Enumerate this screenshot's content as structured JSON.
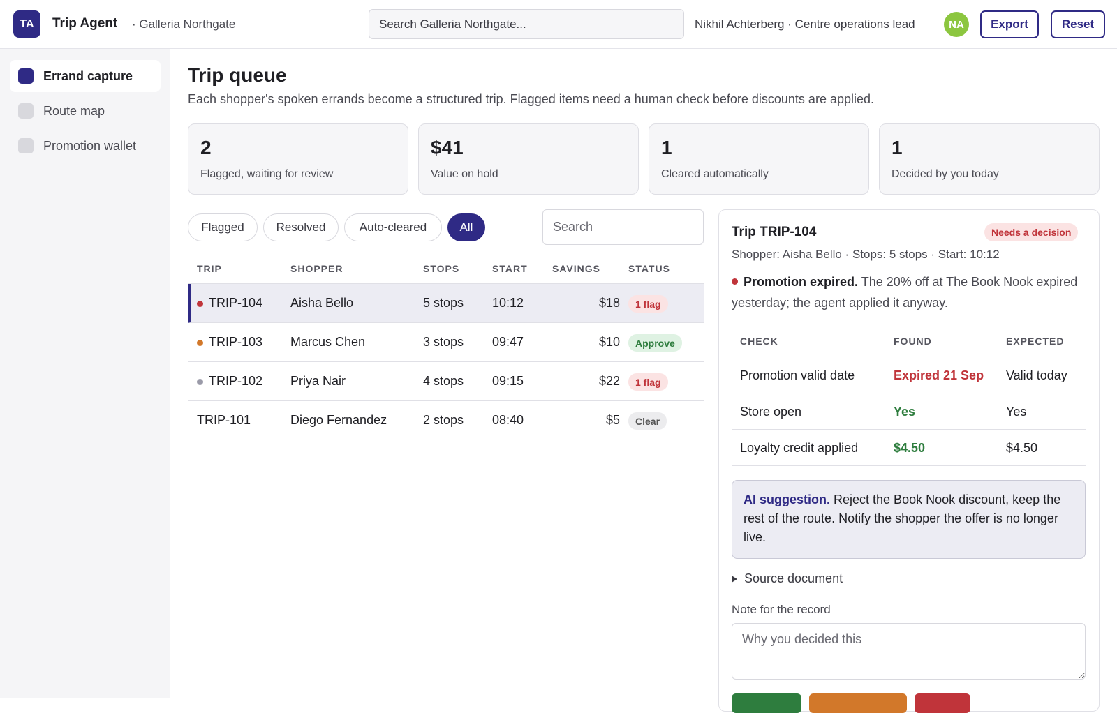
{
  "header": {
    "logo": "TA",
    "app_title": "Trip Agent",
    "site": "· Galleria Northgate",
    "search_placeholder": "Search Galleria Northgate...",
    "user": "Nikhil Achterberg · Centre operations lead",
    "avatar": "NA",
    "export_label": "Export",
    "reset_label": "Reset"
  },
  "sidebar": {
    "items": [
      {
        "label": "Errand capture",
        "active": true
      },
      {
        "label": "Route map",
        "active": false
      },
      {
        "label": "Promotion wallet",
        "active": false
      }
    ]
  },
  "main": {
    "title": "Trip queue",
    "subtitle": "Each shopper's spoken errands become a structured trip. Flagged items need a human check before discounts are applied.",
    "stats": [
      {
        "value": "2",
        "label": "Flagged, waiting for review"
      },
      {
        "value": "$41",
        "label": "Value on hold"
      },
      {
        "value": "1",
        "label": "Cleared automatically"
      },
      {
        "value": "1",
        "label": "Decided by you today"
      }
    ],
    "filters": [
      "Flagged",
      "Resolved",
      "Auto-cleared",
      "All"
    ],
    "active_filter": "All",
    "search_placeholder": "Search",
    "columns": [
      "TRIP",
      "SHOPPER",
      "STOPS",
      "START",
      "SAVINGS",
      "STATUS"
    ],
    "rows": [
      {
        "trip": "TRIP-104",
        "shopper": "Aisha Bello",
        "stops": "5 stops",
        "start": "10:12",
        "savings": "$18",
        "status": "1 flag",
        "status_kind": "flag",
        "dot": "#c0343a",
        "selected": true
      },
      {
        "trip": "TRIP-103",
        "shopper": "Marcus Chen",
        "stops": "3 stops",
        "start": "09:47",
        "savings": "$10",
        "status": "Approve",
        "status_kind": "approve",
        "dot": "#d2782a",
        "selected": false
      },
      {
        "trip": "TRIP-102",
        "shopper": "Priya Nair",
        "stops": "4 stops",
        "start": "09:15",
        "savings": "$22",
        "status": "1 flag",
        "status_kind": "flag",
        "dot": "#9a9aa8",
        "selected": false
      },
      {
        "trip": "TRIP-101",
        "shopper": "Diego Fernandez",
        "stops": "2 stops",
        "start": "08:40",
        "savings": "$5",
        "status": "Clear",
        "status_kind": "clear",
        "dot": "",
        "selected": false
      }
    ]
  },
  "detail": {
    "title": "Trip TRIP-104",
    "badge": "Needs a decision",
    "meta": "Shopper: Aisha Bello · Stops: 5 stops · Start: 10:12",
    "alert_title": "Promotion expired.",
    "alert_text": " The 20% off at The Book Nook expired yesterday; the agent applied it anyway.",
    "check_columns": [
      "CHECK",
      "FOUND",
      "EXPECTED"
    ],
    "checks": [
      {
        "check": "Promotion valid date",
        "found": "Expired 21 Sep",
        "found_kind": "bad",
        "expected": "Valid today"
      },
      {
        "check": "Store open",
        "found": "Yes",
        "found_kind": "good",
        "expected": "Yes"
      },
      {
        "check": "Loyalty credit applied",
        "found": "$4.50",
        "found_kind": "good",
        "expected": "$4.50"
      }
    ],
    "ai_label": "AI suggestion.",
    "ai_text": " Reject the Book Nook discount, keep the rest of the route. Notify the shopper the offer is no longer live.",
    "source_doc": "Source document",
    "note_label": "Note for the record",
    "note_placeholder": "Why you decided this"
  },
  "colors": {
    "accent": "#2f2a85",
    "danger": "#c0343a",
    "success": "#2e7d3e",
    "warning": "#d2782a"
  }
}
